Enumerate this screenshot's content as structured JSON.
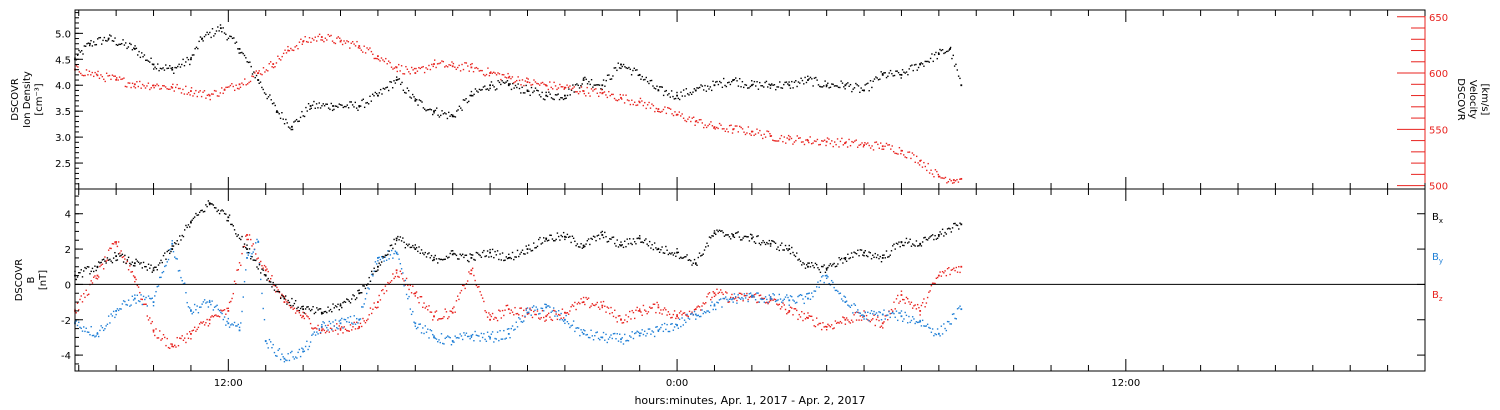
{
  "colors": {
    "black": "#000000",
    "red": "#e8231f",
    "blue": "#1f7fd6"
  },
  "x_axis": {
    "label": "hours:minutes, Apr.  1, 2017 - Apr.  2, 2017",
    "major_ticks": [
      {
        "hour": 12,
        "label": "12:00"
      },
      {
        "hour": 24,
        "label": "0:00"
      },
      {
        "hour": 36,
        "label": "12:00"
      }
    ],
    "range_hours": [
      7.9,
      44.0
    ]
  },
  "chart_data": [
    {
      "type": "scatter",
      "panel": "top",
      "x_unit": "hours since Apr. 1, 2017 00:00",
      "left_axis": {
        "label_lines": [
          "DSCOVR",
          "Ion Density",
          "[cm⁻³]"
        ],
        "ylim": [
          2.0,
          5.45
        ],
        "ticks": [
          "2.5",
          "3.0",
          "3.5",
          "4.0",
          "4.5",
          "5.0"
        ]
      },
      "right_axis": {
        "label_lines": [
          "DSCOVR",
          "Velocity",
          "[km/s]"
        ],
        "ylim": [
          497,
          656
        ],
        "ticks": [
          "500",
          "550",
          "600",
          "650"
        ]
      },
      "series": [
        {
          "color": "black",
          "axis": "left",
          "points": [
            [
              7.9,
              4.5
            ],
            [
              8.3,
              4.8
            ],
            [
              8.8,
              4.9
            ],
            [
              9.5,
              4.7
            ],
            [
              10.0,
              4.4
            ],
            [
              10.5,
              4.3
            ],
            [
              11.0,
              4.5
            ],
            [
              11.3,
              4.9
            ],
            [
              11.8,
              5.1
            ],
            [
              12.3,
              4.7
            ],
            [
              12.8,
              4.1
            ],
            [
              13.3,
              3.5
            ],
            [
              13.7,
              3.2
            ],
            [
              14.2,
              3.6
            ],
            [
              14.8,
              3.6
            ],
            [
              15.5,
              3.6
            ],
            [
              16.0,
              3.8
            ],
            [
              16.5,
              4.1
            ],
            [
              17.0,
              3.7
            ],
            [
              17.5,
              3.5
            ],
            [
              18.0,
              3.4
            ],
            [
              18.5,
              3.8
            ],
            [
              19.0,
              4.0
            ],
            [
              19.5,
              4.0
            ],
            [
              20.0,
              3.9
            ],
            [
              20.5,
              3.8
            ],
            [
              21.0,
              3.8
            ],
            [
              21.5,
              4.1
            ],
            [
              22.0,
              4.0
            ],
            [
              22.5,
              4.4
            ],
            [
              23.0,
              4.2
            ],
            [
              23.5,
              3.9
            ],
            [
              24.0,
              3.8
            ],
            [
              24.5,
              3.9
            ],
            [
              25.0,
              4.0
            ],
            [
              25.5,
              4.1
            ],
            [
              26.0,
              4.0
            ],
            [
              26.5,
              4.0
            ],
            [
              27.0,
              4.0
            ],
            [
              27.5,
              4.1
            ],
            [
              28.0,
              4.0
            ],
            [
              28.5,
              4.0
            ],
            [
              29.0,
              3.9
            ],
            [
              29.5,
              4.2
            ],
            [
              30.0,
              4.2
            ],
            [
              30.5,
              4.4
            ],
            [
              31.0,
              4.6
            ],
            [
              31.3,
              4.7
            ],
            [
              31.6,
              4.0
            ]
          ]
        },
        {
          "color": "red",
          "axis": "right",
          "points": [
            [
              7.9,
              603
            ],
            [
              8.5,
              598
            ],
            [
              9.0,
              594
            ],
            [
              9.5,
              590
            ],
            [
              10.0,
              589
            ],
            [
              10.5,
              587
            ],
            [
              11.0,
              584
            ],
            [
              11.5,
              580
            ],
            [
              11.9,
              585
            ],
            [
              12.3,
              590
            ],
            [
              12.8,
              600
            ],
            [
              13.2,
              608
            ],
            [
              13.6,
              620
            ],
            [
              14.0,
              628
            ],
            [
              14.5,
              632
            ],
            [
              15.0,
              628
            ],
            [
              15.5,
              624
            ],
            [
              16.0,
              615
            ],
            [
              16.5,
              605
            ],
            [
              17.0,
              600
            ],
            [
              17.5,
              608
            ],
            [
              18.0,
              606
            ],
            [
              18.5,
              605
            ],
            [
              19.0,
              600
            ],
            [
              19.5,
              596
            ],
            [
              20.0,
              592
            ],
            [
              20.5,
              589
            ],
            [
              21.0,
              587
            ],
            [
              21.5,
              584
            ],
            [
              22.0,
              582
            ],
            [
              22.5,
              578
            ],
            [
              23.0,
              574
            ],
            [
              23.5,
              568
            ],
            [
              24.0,
              563
            ],
            [
              24.5,
              557
            ],
            [
              25.0,
              552
            ],
            [
              25.5,
              550
            ],
            [
              26.0,
              548
            ],
            [
              26.5,
              544
            ],
            [
              27.0,
              541
            ],
            [
              27.5,
              540
            ],
            [
              28.0,
              539
            ],
            [
              28.5,
              538
            ],
            [
              29.0,
              536
            ],
            [
              29.5,
              535
            ],
            [
              30.0,
              531
            ],
            [
              30.5,
              522
            ],
            [
              31.0,
              508
            ],
            [
              31.4,
              505
            ],
            [
              31.6,
              506
            ]
          ]
        }
      ]
    },
    {
      "type": "scatter",
      "panel": "bottom",
      "x_unit": "hours since Apr. 1, 2017 00:00",
      "left_axis": {
        "label_lines": [
          "DSCOVR",
          "B",
          "[nT]"
        ],
        "ylim": [
          -4.9,
          5.4
        ],
        "ticks": [
          "-4",
          "-2",
          "0",
          "2",
          "4"
        ]
      },
      "zero_line": true,
      "legend_placement": "right",
      "series": [
        {
          "name": "Bx",
          "color": "black",
          "points": [
            [
              7.9,
              0.5
            ],
            [
              8.5,
              1.0
            ],
            [
              9.0,
              1.6
            ],
            [
              9.5,
              1.2
            ],
            [
              10.0,
              0.8
            ],
            [
              10.5,
              2.0
            ],
            [
              11.0,
              3.5
            ],
            [
              11.5,
              4.6
            ],
            [
              12.0,
              3.8
            ],
            [
              12.5,
              2.0
            ],
            [
              13.0,
              0.5
            ],
            [
              13.5,
              -0.8
            ],
            [
              14.0,
              -1.4
            ],
            [
              14.5,
              -1.6
            ],
            [
              15.0,
              -1.2
            ],
            [
              15.5,
              -0.5
            ],
            [
              16.0,
              1.0
            ],
            [
              16.5,
              2.6
            ],
            [
              17.0,
              2.0
            ],
            [
              17.5,
              1.4
            ],
            [
              18.0,
              1.7
            ],
            [
              18.5,
              1.5
            ],
            [
              19.0,
              1.8
            ],
            [
              19.5,
              1.5
            ],
            [
              20.0,
              2.0
            ],
            [
              20.5,
              2.6
            ],
            [
              21.0,
              2.7
            ],
            [
              21.5,
              2.2
            ],
            [
              22.0,
              2.8
            ],
            [
              22.5,
              2.2
            ],
            [
              23.0,
              2.6
            ],
            [
              23.5,
              2.0
            ],
            [
              24.0,
              1.8
            ],
            [
              24.5,
              1.2
            ],
            [
              25.0,
              2.9
            ],
            [
              25.5,
              2.8
            ],
            [
              26.0,
              2.6
            ],
            [
              26.5,
              2.3
            ],
            [
              27.0,
              2.0
            ],
            [
              27.5,
              1.0
            ],
            [
              28.0,
              0.9
            ],
            [
              28.5,
              1.5
            ],
            [
              29.0,
              1.8
            ],
            [
              29.5,
              1.5
            ],
            [
              30.0,
              2.4
            ],
            [
              30.5,
              2.3
            ],
            [
              31.0,
              2.8
            ],
            [
              31.6,
              3.4
            ]
          ]
        },
        {
          "name": "By",
          "color": "blue",
          "points": [
            [
              7.9,
              -2.2
            ],
            [
              8.5,
              -2.8
            ],
            [
              9.0,
              -1.5
            ],
            [
              9.5,
              -0.8
            ],
            [
              10.0,
              -1.0
            ],
            [
              10.5,
              2.3
            ],
            [
              11.0,
              -1.5
            ],
            [
              11.5,
              -1.0
            ],
            [
              12.0,
              -2.2
            ],
            [
              12.3,
              -2.6
            ],
            [
              12.5,
              1.5
            ],
            [
              12.8,
              2.4
            ],
            [
              13.0,
              -3.2
            ],
            [
              13.5,
              -4.2
            ],
            [
              14.0,
              -3.8
            ],
            [
              14.5,
              -2.4
            ],
            [
              15.0,
              -2.2
            ],
            [
              15.5,
              -2.0
            ],
            [
              16.0,
              1.5
            ],
            [
              16.5,
              1.8
            ],
            [
              17.0,
              -2.2
            ],
            [
              17.5,
              -3.0
            ],
            [
              18.0,
              -3.2
            ],
            [
              18.5,
              -2.9
            ],
            [
              19.0,
              -3.0
            ],
            [
              19.5,
              -2.8
            ],
            [
              20.0,
              -1.6
            ],
            [
              20.5,
              -1.3
            ],
            [
              21.0,
              -2.0
            ],
            [
              21.5,
              -2.8
            ],
            [
              22.0,
              -3.0
            ],
            [
              22.5,
              -3.1
            ],
            [
              23.0,
              -2.9
            ],
            [
              23.5,
              -2.6
            ],
            [
              24.0,
              -2.3
            ],
            [
              24.5,
              -1.7
            ],
            [
              25.0,
              -1.2
            ],
            [
              25.5,
              -0.8
            ],
            [
              26.0,
              -0.7
            ],
            [
              26.5,
              -0.8
            ],
            [
              27.0,
              -0.9
            ],
            [
              27.5,
              -0.8
            ],
            [
              28.0,
              0.5
            ],
            [
              28.5,
              -1.0
            ],
            [
              29.0,
              -1.8
            ],
            [
              29.5,
              -1.7
            ],
            [
              30.0,
              -1.8
            ],
            [
              30.5,
              -2.1
            ],
            [
              31.0,
              -2.8
            ],
            [
              31.6,
              -1.4
            ]
          ]
        },
        {
          "name": "Bz",
          "color": "red",
          "points": [
            [
              7.9,
              -1.5
            ],
            [
              8.5,
              0.5
            ],
            [
              9.0,
              2.4
            ],
            [
              9.5,
              0.4
            ],
            [
              10.0,
              -2.6
            ],
            [
              10.5,
              -3.5
            ],
            [
              11.0,
              -2.8
            ],
            [
              11.5,
              -2.0
            ],
            [
              12.0,
              -1.5
            ],
            [
              12.5,
              2.8
            ],
            [
              13.0,
              0.8
            ],
            [
              13.5,
              -1.0
            ],
            [
              14.0,
              -1.8
            ],
            [
              14.5,
              -2.6
            ],
            [
              15.0,
              -2.5
            ],
            [
              15.5,
              -2.4
            ],
            [
              16.0,
              -1.0
            ],
            [
              16.5,
              0.8
            ],
            [
              17.0,
              -0.5
            ],
            [
              17.5,
              -1.8
            ],
            [
              18.0,
              -1.6
            ],
            [
              18.5,
              0.8
            ],
            [
              19.0,
              -2.0
            ],
            [
              19.5,
              -1.4
            ],
            [
              20.0,
              -1.6
            ],
            [
              20.5,
              -1.8
            ],
            [
              21.0,
              -1.6
            ],
            [
              21.5,
              -1.0
            ],
            [
              22.0,
              -1.2
            ],
            [
              22.5,
              -2.0
            ],
            [
              23.0,
              -1.5
            ],
            [
              23.5,
              -1.3
            ],
            [
              24.0,
              -1.8
            ],
            [
              24.5,
              -1.4
            ],
            [
              25.0,
              -0.5
            ],
            [
              25.5,
              -0.8
            ],
            [
              26.0,
              -0.7
            ],
            [
              26.5,
              -0.9
            ],
            [
              27.0,
              -1.5
            ],
            [
              27.5,
              -1.9
            ],
            [
              28.0,
              -2.4
            ],
            [
              28.5,
              -2.0
            ],
            [
              29.0,
              -1.8
            ],
            [
              29.5,
              -2.2
            ],
            [
              30.0,
              -0.6
            ],
            [
              30.5,
              -1.5
            ],
            [
              31.0,
              0.5
            ],
            [
              31.6,
              1.0
            ]
          ]
        }
      ]
    }
  ]
}
